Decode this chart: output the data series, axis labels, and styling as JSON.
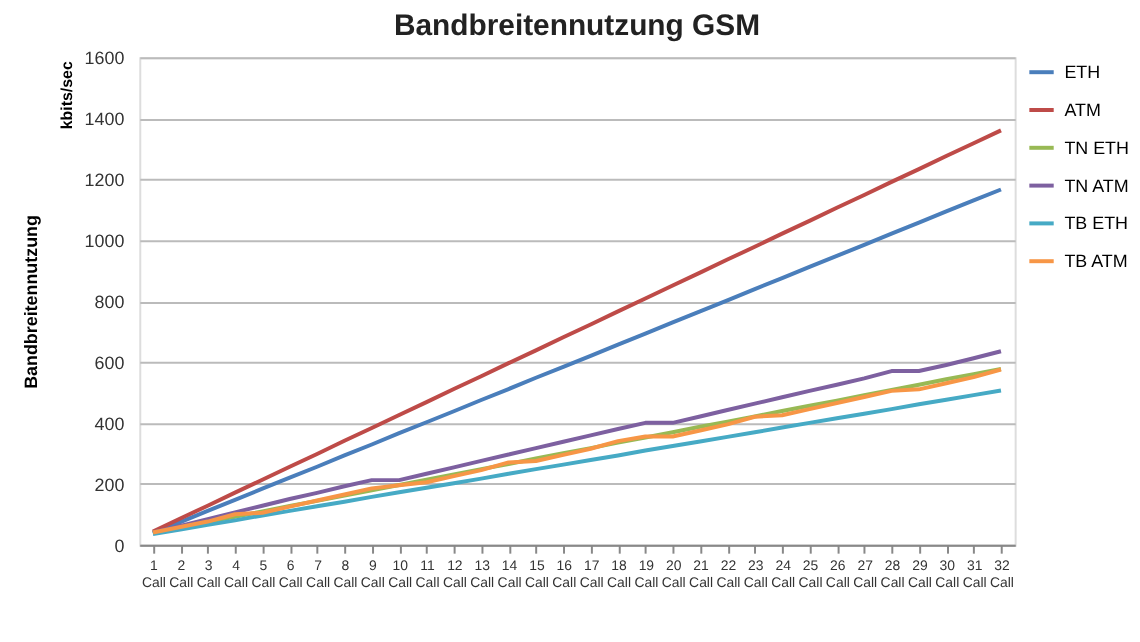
{
  "chart_data": {
    "type": "line",
    "title": "Bandbreitennutzung  GSM",
    "ylabel": "Bandbreitennutzung",
    "annotations": [
      "kbits/sec"
    ],
    "categories": [
      "1 Call",
      "2 Call",
      "3 Call",
      "4 Call",
      "5 Call",
      "6 Call",
      "7 Call",
      "8 Call",
      "9 Call",
      "10 Call",
      "11 Call",
      "12 Call",
      "13 Call",
      "14 Call",
      "15 Call",
      "16 Call",
      "17 Call",
      "18 Call",
      "19 Call",
      "20 Call",
      "21 Call",
      "22 Call",
      "23 Call",
      "24 Call",
      "25 Call",
      "26 Call",
      "27 Call",
      "28 Call",
      "29 Call",
      "30 Call",
      "31 Call",
      "32 Call"
    ],
    "series": [
      {
        "name": "ETH",
        "color": "#4a7ebb",
        "values": [
          38,
          74,
          111,
          147,
          184,
          220,
          256,
          293,
          329,
          366,
          402,
          438,
          475,
          511,
          548,
          584,
          620,
          657,
          693,
          730,
          766,
          802,
          839,
          875,
          912,
          948,
          984,
          1021,
          1057,
          1094,
          1130,
          1166
        ]
      },
      {
        "name": "ATM",
        "color": "#be4b48",
        "values": [
          43,
          86,
          128,
          171,
          213,
          256,
          298,
          341,
          383,
          426,
          468,
          511,
          553,
          596,
          638,
          681,
          723,
          766,
          808,
          851,
          893,
          936,
          978,
          1021,
          1063,
          1106,
          1148,
          1191,
          1233,
          1276,
          1318,
          1360
        ]
      },
      {
        "name": "TN ETH",
        "color": "#98b954",
        "values": [
          40,
          57,
          75,
          92,
          109,
          127,
          144,
          161,
          179,
          196,
          213,
          231,
          248,
          265,
          283,
          300,
          317,
          335,
          352,
          369,
          387,
          404,
          421,
          439,
          456,
          473,
          491,
          508,
          525,
          543,
          560,
          577
        ]
      },
      {
        "name": "TN ATM",
        "color": "#7d60a0",
        "values": [
          40,
          62,
          84,
          106,
          128,
          150,
          170,
          192,
          212,
          212,
          233,
          254,
          275,
          296,
          317,
          338,
          359,
          380,
          400,
          400,
          421,
          442,
          463,
          484,
          505,
          525,
          546,
          570,
          570,
          590,
          612,
          635
        ]
      },
      {
        "name": "TB ETH",
        "color": "#46aac5",
        "values": [
          35,
          50,
          65,
          80,
          96,
          111,
          126,
          141,
          157,
          172,
          187,
          202,
          217,
          233,
          248,
          263,
          278,
          293,
          309,
          324,
          339,
          354,
          369,
          385,
          400,
          415,
          430,
          445,
          461,
          476,
          491,
          506
        ]
      },
      {
        "name": "TB ATM",
        "color": "#f79646",
        "values": [
          40,
          58,
          76,
          100,
          105,
          125,
          145,
          165,
          185,
          195,
          205,
          225,
          245,
          270,
          275,
          295,
          315,
          340,
          355,
          355,
          375,
          395,
          420,
          425,
          445,
          465,
          485,
          505,
          510,
          530,
          550,
          575
        ]
      }
    ],
    "ylim": [
      0,
      1600
    ],
    "yticks": [
      0,
      200,
      400,
      600,
      800,
      1000,
      1200,
      1400,
      1600
    ],
    "grid": "y",
    "legend": "right",
    "marker": "none",
    "line_style": "solid"
  }
}
